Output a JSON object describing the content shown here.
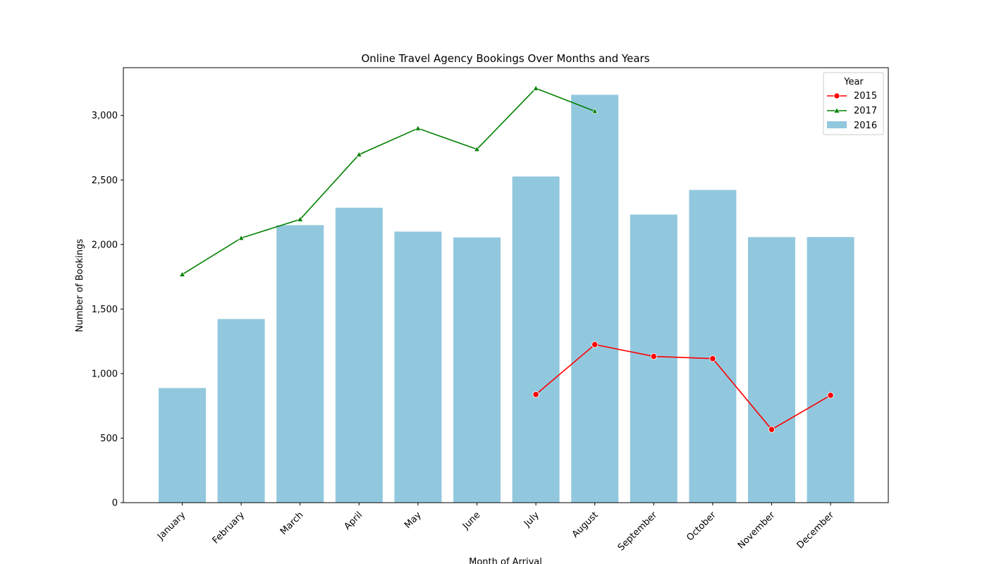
{
  "chart_data": {
    "type": "bar",
    "title": "Online Travel Agency Bookings Over Months and Years",
    "xlabel": "Month of Arrival",
    "ylabel": "Number of Bookings",
    "ylim": [
      0,
      3370
    ],
    "yticks": [
      0,
      500,
      1000,
      1500,
      2000,
      2500,
      3000
    ],
    "ytick_labels": [
      "0",
      "500",
      "1,000",
      "1,500",
      "2,000",
      "2,500",
      "3,000"
    ],
    "grid": false,
    "legend": {
      "title": "Year",
      "position": "top-right"
    },
    "categories": [
      "January",
      "February",
      "March",
      "April",
      "May",
      "June",
      "July",
      "August",
      "September",
      "October",
      "November",
      "December"
    ],
    "bars": {
      "name": "2016",
      "color": "#92c8de",
      "values": [
        888,
        1423,
        2150,
        2285,
        2100,
        2055,
        2527,
        3160,
        2232,
        2423,
        2057,
        2058
      ]
    },
    "lines": [
      {
        "name": "2015",
        "color": "#ff0000",
        "marker": "circle",
        "values": [
          null,
          null,
          null,
          null,
          null,
          null,
          838,
          1225,
          1133,
          1116,
          567,
          832
        ]
      },
      {
        "name": "2017",
        "color": "#008000",
        "marker": "triangle",
        "values": [
          1768,
          2050,
          2195,
          2697,
          2900,
          2738,
          3210,
          3033,
          null,
          null,
          null,
          null
        ]
      }
    ]
  }
}
